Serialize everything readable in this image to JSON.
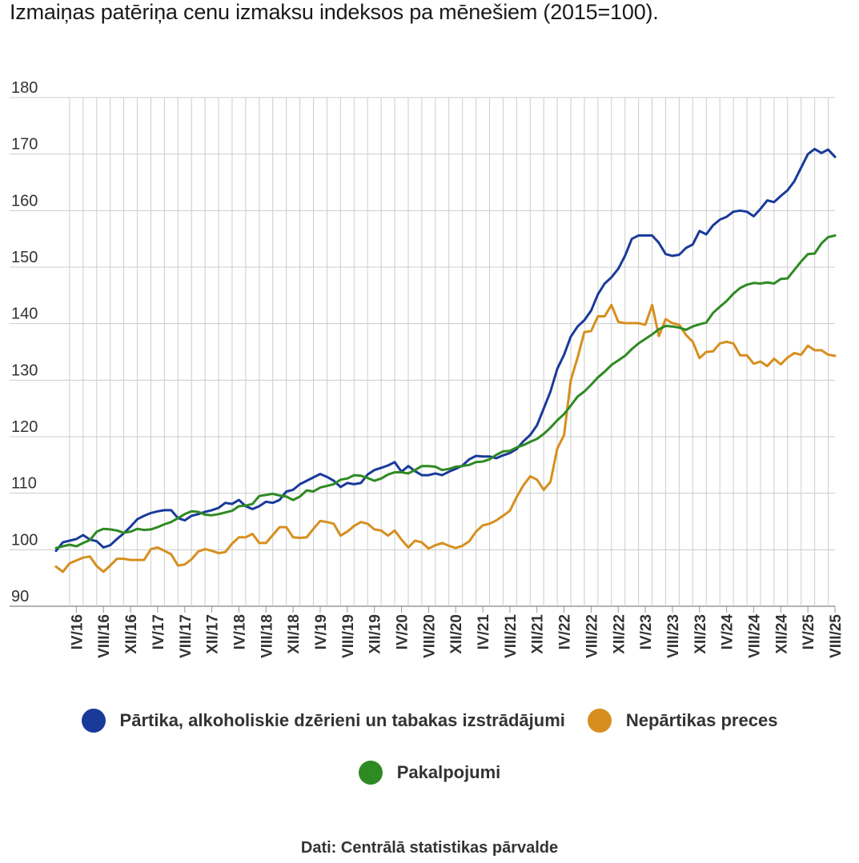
{
  "title": "Izmaiņas patēriņa cenu izmaksu indeksos pa mēnešiem (2015=100).",
  "source": "Dati: Centrālā statistikas pārvalde",
  "colors": {
    "food": "#1a3a9a",
    "nonfood": "#d68f1e",
    "services": "#2e8a22",
    "grid": "#cccccc"
  },
  "chart_data": {
    "type": "line",
    "title": "Izmaiņas patēriņa cenu izmaksu indeksos pa mēnešiem (2015=100).",
    "x_start": "I/16",
    "x_end": "IX/25",
    "ylim": [
      90,
      180
    ],
    "yticks": [
      90,
      100,
      110,
      120,
      130,
      140,
      150,
      160,
      170,
      180
    ],
    "xtick_labels": [
      "IV/16",
      "VIII/16",
      "XII/16",
      "IV/17",
      "VIII/17",
      "XII/17",
      "IV/18",
      "VIII/18",
      "XII/18",
      "IV/19",
      "VIII/19",
      "XII/19",
      "IV/20",
      "VIII/20",
      "XII/20",
      "IV/21",
      "VIII/21",
      "XII/21",
      "IV/22",
      "VIII/22",
      "XII/22",
      "IV/23",
      "VIII/23",
      "XII/23",
      "IV/24",
      "VIII/24",
      "XII/24",
      "IV/25",
      "VIII/25"
    ],
    "grid": true,
    "legend_position": "bottom",
    "series": [
      {
        "name": "Pārtika, alkoholiskie dzērieni un tabakas izstrādājumi",
        "color": "#1a3a9a",
        "values": [
          99.8,
          101.3,
          101.6,
          101.9,
          102.6,
          101.8,
          101.5,
          100.4,
          100.8,
          101.9,
          102.9,
          104.1,
          105.4,
          106,
          106.5,
          106.8,
          107,
          107,
          105.6,
          105.2,
          106,
          106.3,
          106.7,
          107,
          107.4,
          108.3,
          108.1,
          108.8,
          107.7,
          107.2,
          107.7,
          108.5,
          108.3,
          108.8,
          110.3,
          110.6,
          111.6,
          112.2,
          112.8,
          113.4,
          112.9,
          112.2,
          111.1,
          111.8,
          111.6,
          111.8,
          113.3,
          114.1,
          114.5,
          114.9,
          115.5,
          113.8,
          114.8,
          113.9,
          113.2,
          113.2,
          113.5,
          113.2,
          113.8,
          114.3,
          114.9,
          116,
          116.6,
          116.5,
          116.5,
          116.2,
          116.7,
          117.1,
          117.8,
          119.2,
          120.3,
          122,
          125,
          128,
          132,
          134.5,
          137.7,
          139.5,
          140.6,
          142.3,
          145.2,
          147.1,
          148.2,
          149.7,
          152,
          155,
          155.6,
          155.6,
          155.6,
          154.3,
          152.3,
          152,
          152.2,
          153.4,
          154,
          156.4,
          155.8,
          157.4,
          158.4,
          158.9,
          159.8,
          160,
          159.8,
          159,
          160.3,
          161.8,
          161.5,
          162.6,
          163.6,
          165.2,
          167.6,
          170,
          170.9,
          170.2,
          170.8,
          169.5
        ]
      },
      {
        "name": "Nepārtikas preces",
        "color": "#d68f1e",
        "values": [
          97,
          96.1,
          97.6,
          98.1,
          98.6,
          98.8,
          97.1,
          96.1,
          97.2,
          98.4,
          98.4,
          98.2,
          98.2,
          98.2,
          100.1,
          100.4,
          99.8,
          99.2,
          97.2,
          97.4,
          98.3,
          99.7,
          100.1,
          99.8,
          99.4,
          99.6,
          101.1,
          102.2,
          102.2,
          102.8,
          101.2,
          101.2,
          102.6,
          104,
          104,
          102.2,
          102.1,
          102.2,
          103.7,
          105.1,
          104.9,
          104.6,
          102.5,
          103.2,
          104.2,
          104.9,
          104.6,
          103.6,
          103.4,
          102.5,
          103.4,
          101.8,
          100.4,
          101.6,
          101.3,
          100.2,
          100.8,
          101.2,
          100.7,
          100.3,
          100.7,
          101.5,
          103.2,
          104.3,
          104.6,
          105.2,
          106,
          106.9,
          109.3,
          111.4,
          113,
          112.4,
          110.6,
          112,
          117.9,
          120.3,
          130,
          134,
          138.5,
          138.7,
          141.3,
          141.3,
          143.3,
          140.3,
          140.1,
          140.1,
          140.1,
          139.8,
          143.3,
          137.8,
          140.8,
          140.1,
          139.8,
          138,
          136.8,
          133.9,
          135,
          135.1,
          136.5,
          136.8,
          136.5,
          134.4,
          134.4,
          132.9,
          133.3,
          132.5,
          133.8,
          132.8,
          134,
          134.8,
          134.5,
          136.1,
          135.3,
          135.3,
          134.5,
          134.3
        ]
      },
      {
        "name": "Pakalpojumi",
        "color": "#2e8a22",
        "values": [
          100.3,
          100.6,
          100.9,
          100.6,
          101.2,
          101.7,
          103.2,
          103.7,
          103.6,
          103.4,
          103,
          103.2,
          103.7,
          103.5,
          103.6,
          104,
          104.5,
          104.9,
          105.6,
          106.3,
          106.8,
          106.7,
          106.2,
          106.1,
          106.3,
          106.6,
          106.9,
          107.7,
          107.8,
          108.1,
          109.5,
          109.7,
          109.9,
          109.6,
          109.4,
          108.8,
          109.4,
          110.5,
          110.3,
          111,
          111.3,
          111.6,
          112.4,
          112.6,
          113.2,
          113.1,
          112.7,
          112.2,
          112.6,
          113.3,
          113.7,
          113.7,
          113.5,
          114.1,
          114.8,
          114.8,
          114.7,
          114.1,
          114.3,
          114.7,
          114.8,
          115,
          115.5,
          115.6,
          116,
          116.8,
          117.4,
          117.5,
          118.1,
          118.5,
          119.1,
          119.6,
          120.5,
          121.6,
          122.9,
          124,
          125.5,
          127.1,
          128,
          129.2,
          130.5,
          131.5,
          132.7,
          133.5,
          134.3,
          135.5,
          136.5,
          137.3,
          138.1,
          139,
          139.6,
          139.5,
          139.3,
          138.9,
          139.5,
          139.9,
          140.2,
          141.9,
          143,
          144,
          145.3,
          146.3,
          146.9,
          147.2,
          147.1,
          147.3,
          147.1,
          147.9,
          148,
          149.5,
          151,
          152.3,
          152.4,
          154.2,
          155.3,
          155.6
        ]
      }
    ]
  },
  "legend": [
    {
      "label": "Pārtika, alkoholiskie dzērieni un tabakas izstrādājumi",
      "color": "#1a3a9a"
    },
    {
      "label": "Nepārtikas preces",
      "color": "#d68f1e"
    },
    {
      "label": "Pakalpojumi",
      "color": "#2e8a22"
    }
  ]
}
